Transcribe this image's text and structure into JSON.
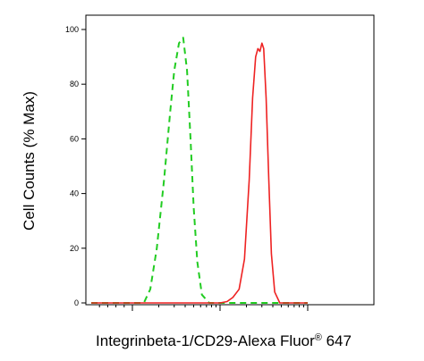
{
  "chart_data": {
    "type": "line",
    "title": "",
    "xlabel": "Integrinbeta-1/CD29-Alexa Fluor",
    "xlabel_superscript": "®",
    "xlabel_suffix": " 647",
    "ylabel": "Cell Counts (% Max)",
    "x_scale": "log",
    "xlim": [
      0,
      100
    ],
    "ylim": [
      0,
      103
    ],
    "y_ticks": [
      0,
      20,
      40,
      60,
      80,
      100
    ],
    "grid": false,
    "series": [
      {
        "style": "dashed",
        "color": "#22cc22",
        "x": [
          0.0,
          1.35,
          1.6,
          1.9,
          2.3,
          2.7,
          3.0,
          3.4,
          3.8,
          4.2,
          4.6,
          5.0,
          5.5,
          6.2,
          7.5,
          100.0
        ],
        "y": [
          0,
          0,
          5,
          20,
          45,
          70,
          85,
          95,
          97,
          85,
          60,
          35,
          15,
          3,
          0,
          0
        ]
      },
      {
        "style": "solid",
        "color": "#ee2222",
        "x": [
          0.0,
          10.0,
          12.0,
          14.0,
          16.5,
          19.0,
          21.5,
          23.5,
          25.5,
          27.0,
          28.5,
          30.0,
          31.5,
          33.5,
          36.0,
          38.5,
          42.0,
          48.0,
          100.0
        ],
        "y": [
          0,
          0,
          0.5,
          2,
          5,
          16,
          45,
          75,
          90,
          93,
          92,
          95,
          93,
          75,
          45,
          18,
          4,
          0,
          0
        ]
      }
    ]
  }
}
